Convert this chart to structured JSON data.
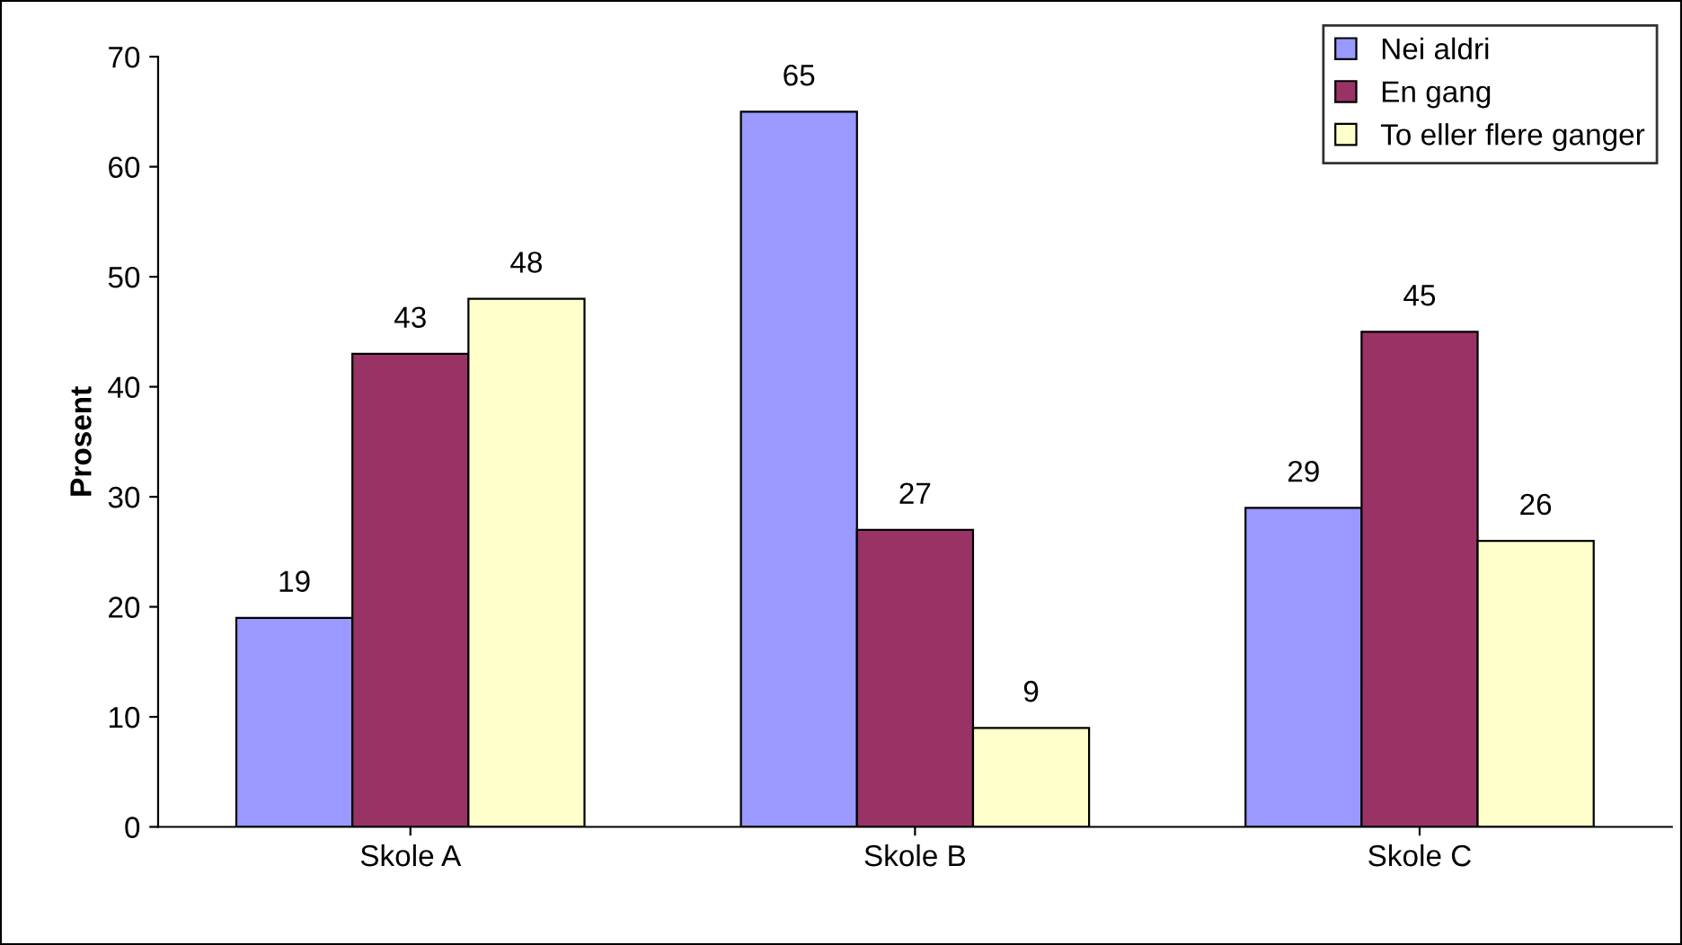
{
  "chart_data": {
    "type": "bar",
    "ylabel": "Prosent",
    "categories": [
      "Skole A",
      "Skole B",
      "Skole C"
    ],
    "series": [
      {
        "name": "Nei aldri",
        "color": "#9999ff",
        "values": [
          19,
          65,
          29
        ]
      },
      {
        "name": "En gang",
        "color": "#993366",
        "values": [
          43,
          27,
          45
        ]
      },
      {
        "name": "To eller flere ganger",
        "color": "#ffffcc",
        "values": [
          48,
          9,
          26
        ]
      }
    ],
    "ylim": [
      0,
      70
    ],
    "yticks": [
      0,
      10,
      20,
      30,
      40,
      50,
      60,
      70
    ],
    "data_labels": true,
    "legend": "top right",
    "grid": false
  }
}
